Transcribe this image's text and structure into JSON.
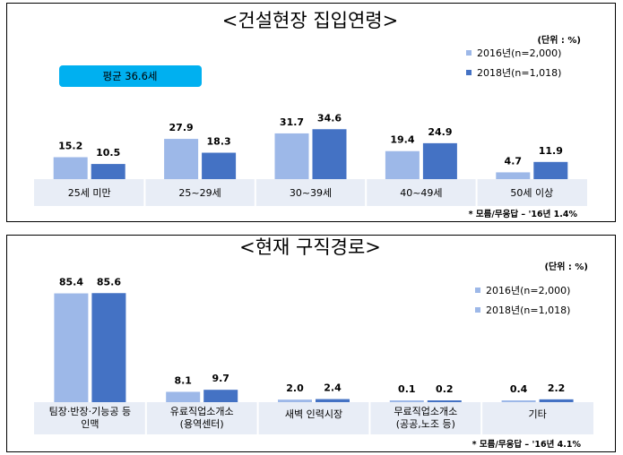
{
  "colors": {
    "series_2016": "#9db8e8",
    "series_2018": "#4472c4",
    "category_band": "#e8edf6",
    "avg_badge": "#00b0f0"
  },
  "chart_data": [
    {
      "type": "bar",
      "title": "<건설현장 집입연령>",
      "unit": "(단위 : %)",
      "categories": [
        "25세 미만",
        "25~29세",
        "30~39세",
        "40~49세",
        "50세 이상"
      ],
      "series": [
        {
          "name": "2016년(n=2,000)",
          "values": [
            15.2,
            27.9,
            31.7,
            19.4,
            4.7
          ]
        },
        {
          "name": "2018년(n=1,018)",
          "values": [
            10.5,
            18.3,
            34.6,
            24.9,
            11.9
          ]
        }
      ],
      "ylim": [
        0,
        36
      ],
      "legend_position": "top-right",
      "annotation": "평균 36.6세",
      "note": "* 모름/무응답 – '16년 1.4%"
    },
    {
      "type": "bar",
      "title": "<현재 구직경로>",
      "unit": "(단위 : %)",
      "categories": [
        [
          "팀장·반장·기능공 등",
          "인맥"
        ],
        [
          "유료직업소개소",
          "(용역센터)"
        ],
        [
          "새벽 인력시장"
        ],
        [
          "무료직업소개소",
          "(공공,노조 등)"
        ],
        [
          "기타"
        ]
      ],
      "series": [
        {
          "name": "2016년(n=2,000)",
          "values": [
            85.4,
            8.1,
            2.0,
            0.1,
            0.4
          ]
        },
        {
          "name": "2018년(n=1,018)",
          "values": [
            85.6,
            9.7,
            2.4,
            0.2,
            2.2
          ]
        }
      ],
      "ylim": [
        0,
        90
      ],
      "legend_position": "top-right",
      "note": "* 모름/무응답 – '16년 4.1%"
    }
  ]
}
